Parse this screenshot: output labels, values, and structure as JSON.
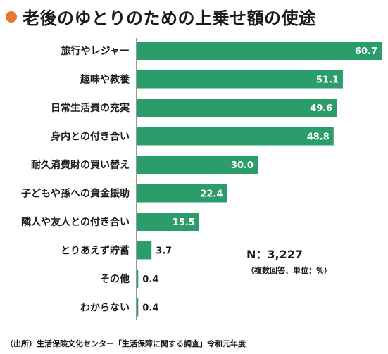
{
  "colors": {
    "accent_dot": "#e8772e",
    "bar": "#2a9d6b",
    "axis": "#333333"
  },
  "chart_data": {
    "type": "bar",
    "orientation": "horizontal",
    "title": "老後のゆとりのための上乗せ額の使途",
    "categories": [
      "旅行やレジャー",
      "趣味や教養",
      "日常生活費の充実",
      "身内との付き合い",
      "耐久消費財の買い替え",
      "子どもや孫への資金援助",
      "隣人や友人との付き合い",
      "とりあえず貯蓄",
      "その他",
      "わからない"
    ],
    "value_labels": [
      "60.7",
      "51.1",
      "49.6",
      "48.8",
      "30.0",
      "22.4",
      "15.5",
      "3.7",
      "0.4",
      "0.4"
    ],
    "values": [
      60.7,
      51.1,
      49.6,
      48.8,
      30.0,
      22.4,
      15.5,
      3.7,
      0.4,
      0.4
    ],
    "xlim": [
      0,
      60.7
    ],
    "grid": false,
    "legend": "none",
    "sample_size": "N：3,227",
    "unit_note": "（複数回答、単位：％）",
    "source": "（出所）生活保険文化センター「生活保障に関する調査」令和元年度"
  }
}
